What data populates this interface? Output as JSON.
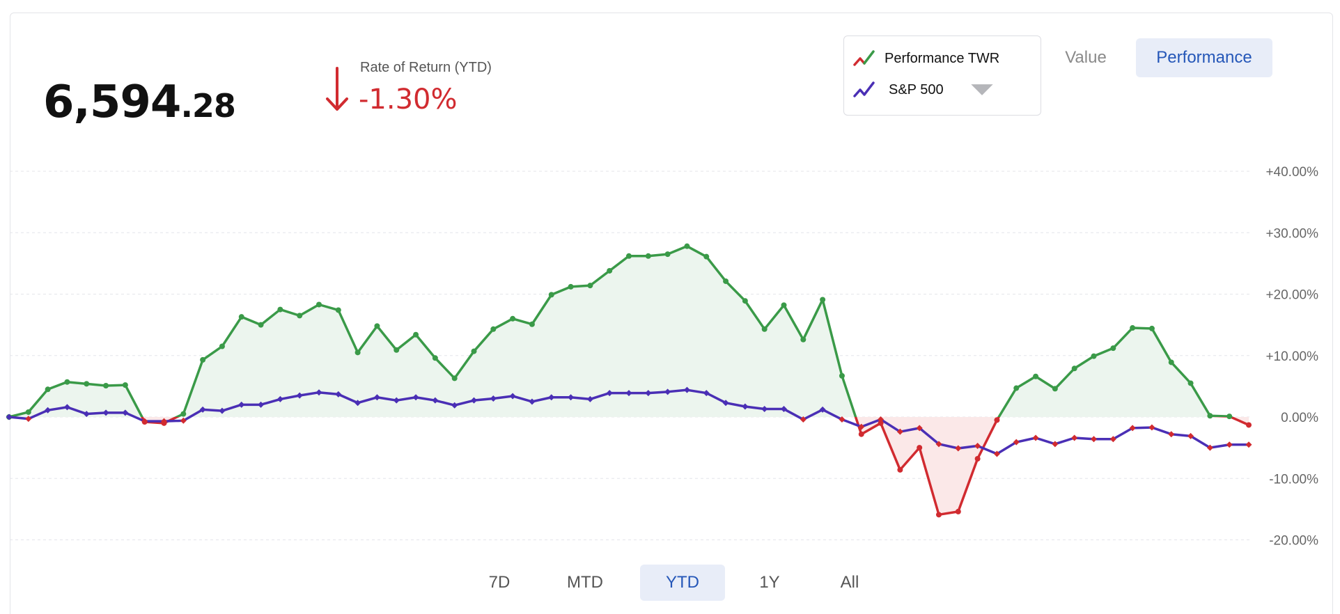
{
  "header": {
    "balance_int": "6,594",
    "balance_dec": ".28",
    "ror_label": "Rate of Return (YTD)",
    "ror_value": "-1.30%",
    "ror_direction": "down"
  },
  "legend": {
    "items": [
      {
        "label": "Performance TWR",
        "icon": "trend-line-icon",
        "colors": [
          "#d12b30",
          "#3a9a48"
        ]
      },
      {
        "label": "S&P 500",
        "icon": "trend-line-icon",
        "colors": [
          "#4a2fb5"
        ]
      }
    ],
    "dropdown_icon": "caret-down-icon"
  },
  "view_toggle": {
    "value_label": "Value",
    "performance_label": "Performance",
    "selected": "Performance"
  },
  "ranges": {
    "items": [
      "7D",
      "MTD",
      "YTD",
      "1Y",
      "All"
    ],
    "selected": "YTD"
  },
  "colors": {
    "positive": "#3a9a48",
    "negative": "#d12b30",
    "benchmark": "#4a2fb5",
    "positive_fill": "#ecf5ee",
    "negative_fill": "#fbe8e8",
    "active_bg": "#e8edf8",
    "active_text": "#2557b8"
  },
  "chart_data": {
    "type": "line",
    "y_tick_labels": [
      "+40.00%",
      "+30.00%",
      "+20.00%",
      "+10.00%",
      "0.00%",
      "-10.00%",
      "-20.00%"
    ],
    "y_ticks": [
      40,
      30,
      20,
      10,
      0,
      -10,
      -20
    ],
    "ylim": [
      -20,
      40
    ],
    "grid": true,
    "fill_area": true,
    "series": [
      {
        "name": "Performance TWR",
        "values": [
          0.0,
          0.8,
          4.5,
          5.7,
          5.4,
          5.1,
          5.2,
          -0.8,
          -1.0,
          0.5,
          9.3,
          11.5,
          16.3,
          15.0,
          17.5,
          16.5,
          18.3,
          17.4,
          10.5,
          14.8,
          10.9,
          13.4,
          9.6,
          6.3,
          10.7,
          14.3,
          16.0,
          15.1,
          19.9,
          21.2,
          21.4,
          23.8,
          26.2,
          26.2,
          26.5,
          27.8,
          26.1,
          22.1,
          18.9,
          14.3,
          18.2,
          12.6,
          19.1,
          6.7,
          -2.8,
          -1.0,
          -8.6,
          -5.0,
          -15.9,
          -15.4,
          -6.8,
          -0.5,
          4.7,
          6.6,
          4.6,
          7.9,
          9.9,
          11.2,
          14.5,
          14.4,
          8.9,
          5.5,
          0.2,
          0.1,
          -1.3
        ]
      },
      {
        "name": "S&P 500",
        "values": [
          0.0,
          -0.3,
          1.1,
          1.6,
          0.5,
          0.7,
          0.7,
          -0.7,
          -0.7,
          -0.6,
          1.2,
          1.0,
          2.0,
          2.0,
          2.9,
          3.5,
          4.0,
          3.7,
          2.3,
          3.2,
          2.7,
          3.2,
          2.7,
          1.9,
          2.7,
          3.0,
          3.4,
          2.5,
          3.2,
          3.2,
          2.9,
          3.9,
          3.9,
          3.9,
          4.1,
          4.4,
          3.9,
          2.3,
          1.7,
          1.3,
          1.3,
          -0.4,
          1.2,
          -0.4,
          -1.6,
          -0.4,
          -2.4,
          -1.8,
          -4.4,
          -5.1,
          -4.7,
          -6.0,
          -4.1,
          -3.4,
          -4.4,
          -3.4,
          -3.6,
          -3.6,
          -1.8,
          -1.7,
          -2.8,
          -3.1,
          -5.0,
          -4.5,
          -4.5
        ]
      }
    ]
  }
}
